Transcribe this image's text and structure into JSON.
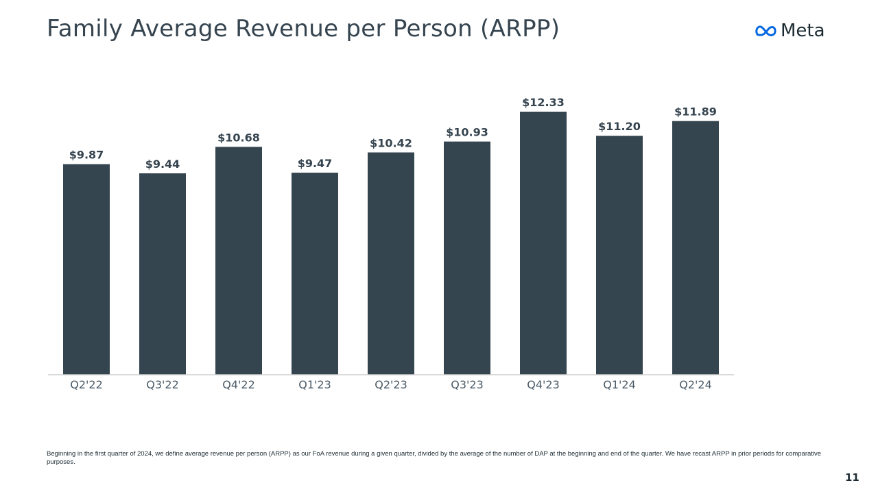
{
  "slide": {
    "title": "Family Average Revenue per Person (ARPP)",
    "footnote": "Beginning in the first quarter of 2024, we define average revenue per person (ARPP) as our FoA revenue during a given quarter, divided by the average of the number of DAP at the beginning and end of the quarter. We have recast ARPP in prior periods for comparative purposes.",
    "page_number": "11"
  },
  "logo": {
    "text": "Meta",
    "icon": "meta-infinity-icon"
  },
  "colors": {
    "bar": "#354550",
    "text": "#35444f",
    "axis": "#cfcfcf",
    "logo_blue": "#0668e1"
  },
  "chart_data": {
    "type": "bar",
    "title": "Family Average Revenue per Person (ARPP)",
    "xlabel": "",
    "ylabel": "",
    "categories": [
      "Q2'22",
      "Q3'22",
      "Q4'22",
      "Q1'23",
      "Q2'23",
      "Q3'23",
      "Q4'23",
      "Q1'24",
      "Q2'24"
    ],
    "values": [
      9.87,
      9.44,
      10.68,
      9.47,
      10.42,
      10.93,
      12.33,
      11.2,
      11.89
    ],
    "data_labels": [
      "$9.87",
      "$9.44",
      "$10.68",
      "$9.47",
      "$10.42",
      "$10.93",
      "$12.33",
      "$11.20",
      "$11.89"
    ],
    "ylim": [
      0,
      12.33
    ],
    "grid": false,
    "legend": "none"
  }
}
